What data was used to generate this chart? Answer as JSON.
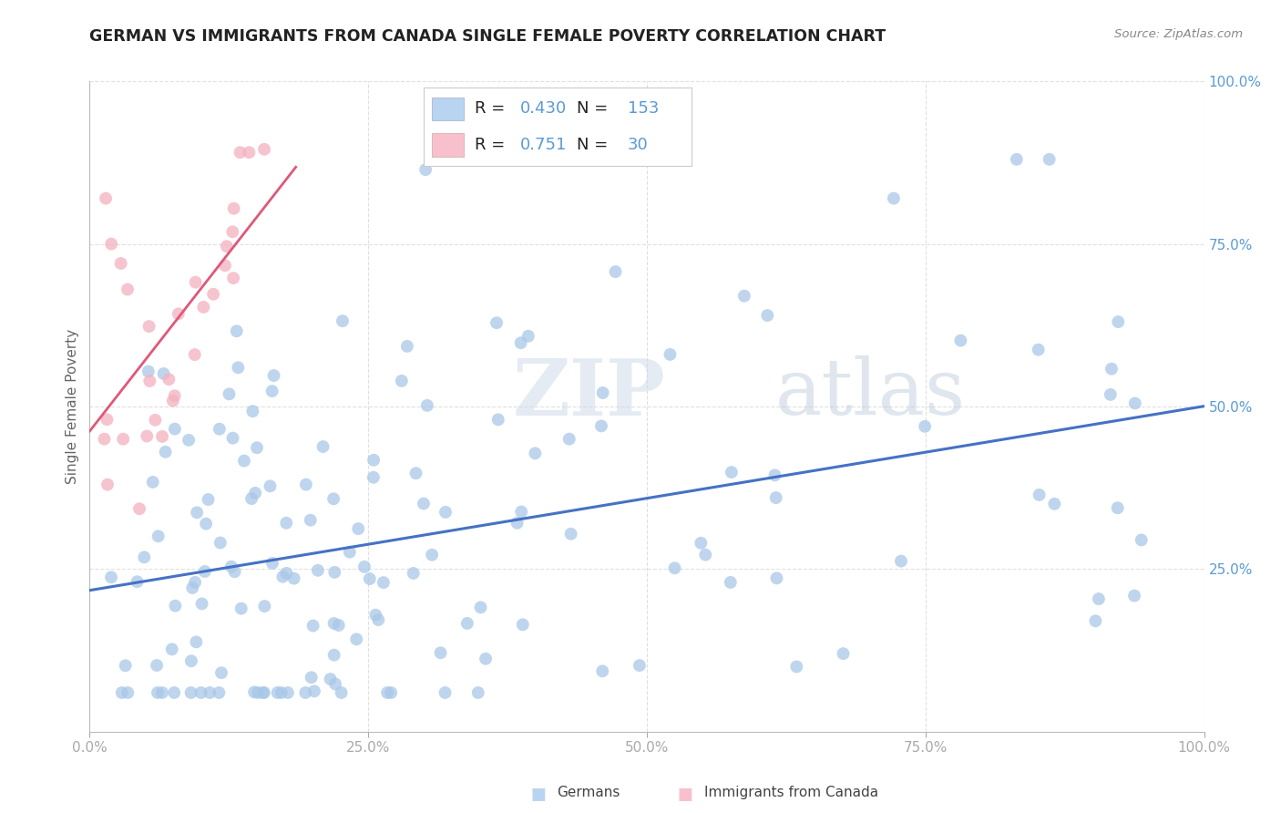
{
  "title": "GERMAN VS IMMIGRANTS FROM CANADA SINGLE FEMALE POVERTY CORRELATION CHART",
  "source": "Source: ZipAtlas.com",
  "ylabel": "Single Female Poverty",
  "german_color": "#a8c8e8",
  "canada_color": "#f4b0c0",
  "german_line_color": "#4472c4",
  "canada_line_color": "#e05878",
  "legend_blue_fill": "#b8d4f0",
  "legend_pink_fill": "#f8c0cc",
  "german_R": 0.43,
  "german_N": 153,
  "canada_R": 0.751,
  "canada_N": 30,
  "watermark_ZIP": "ZIP",
  "watermark_atlas": "atlas",
  "background_color": "#ffffff",
  "grid_color": "#e0e0e0",
  "tick_color": "#5b9bd5",
  "rn_value_color": "#5b9bd5",
  "rn_label_color": "#222222",
  "title_color": "#222222",
  "source_color": "#888888",
  "ylabel_color": "#666666"
}
